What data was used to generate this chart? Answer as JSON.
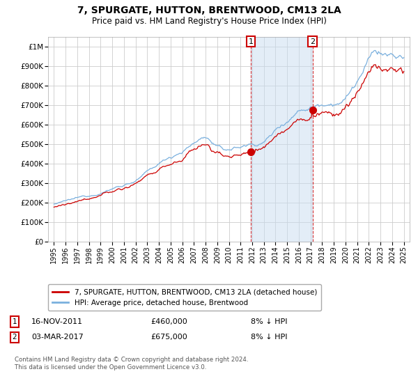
{
  "title": "7, SPURGATE, HUTTON, BRENTWOOD, CM13 2LA",
  "subtitle": "Price paid vs. HM Land Registry's House Price Index (HPI)",
  "hpi_label": "HPI: Average price, detached house, Brentwood",
  "property_label": "7, SPURGATE, HUTTON, BRENTWOOD, CM13 2LA (detached house)",
  "sale1_date": "16-NOV-2011",
  "sale1_price": 460000,
  "sale1_note": "8% ↓ HPI",
  "sale2_date": "03-MAR-2017",
  "sale2_price": 675000,
  "sale2_note": "8% ↓ HPI",
  "sale1_x": 2011.88,
  "sale2_x": 2017.17,
  "ylim_min": 0,
  "ylim_max": 1050000,
  "xlim_start": 1994.5,
  "xlim_end": 2025.5,
  "hpi_color": "#7ab0de",
  "property_color": "#cc0000",
  "shade_color": "#c8dcf0",
  "background_color": "#ffffff",
  "grid_color": "#cccccc",
  "footer": "Contains HM Land Registry data © Crown copyright and database right 2024.\nThis data is licensed under the Open Government Licence v3.0.",
  "yticks": [
    0,
    100000,
    200000,
    300000,
    400000,
    500000,
    600000,
    700000,
    800000,
    900000,
    1000000
  ],
  "ytick_labels": [
    "£0",
    "£100K",
    "£200K",
    "£300K",
    "£400K",
    "£500K",
    "£600K",
    "£700K",
    "£800K",
    "£900K",
    "£1M"
  ],
  "xticks": [
    1995,
    1996,
    1997,
    1998,
    1999,
    2000,
    2001,
    2002,
    2003,
    2004,
    2005,
    2006,
    2007,
    2008,
    2009,
    2010,
    2011,
    2012,
    2013,
    2014,
    2015,
    2016,
    2017,
    2018,
    2019,
    2020,
    2021,
    2022,
    2023,
    2024,
    2025
  ]
}
